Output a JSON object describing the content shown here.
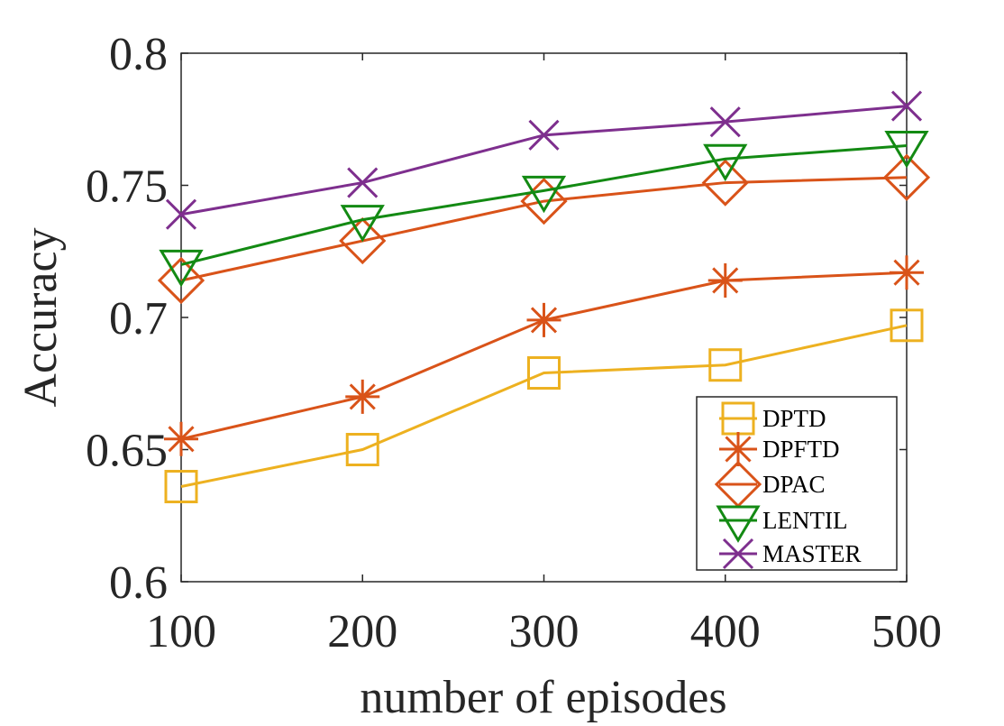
{
  "chart_data": {
    "type": "line",
    "title": "",
    "xlabel": "number of episodes",
    "ylabel": "Accuracy",
    "x": [
      100,
      200,
      300,
      400,
      500
    ],
    "x_ticks": [
      "100",
      "200",
      "300",
      "400",
      "500"
    ],
    "y_ticks": [
      "0.6",
      "0.65",
      "0.7",
      "0.75",
      "0.8"
    ],
    "xlim": [
      100,
      500
    ],
    "ylim": [
      0.6,
      0.8
    ],
    "grid": false,
    "legend_position": "bottom-right",
    "series": [
      {
        "name": "DPTD",
        "marker": "square",
        "color": "#EDB120",
        "values": [
          0.636,
          0.65,
          0.679,
          0.682,
          0.697
        ]
      },
      {
        "name": "DPFTD",
        "marker": "asterisk",
        "color": "#D95319",
        "values": [
          0.654,
          0.67,
          0.699,
          0.714,
          0.717
        ]
      },
      {
        "name": "DPAC",
        "marker": "diamond",
        "color": "#D95319",
        "values": [
          0.714,
          0.729,
          0.744,
          0.751,
          0.753
        ]
      },
      {
        "name": "LENTIL",
        "marker": "triangle-down",
        "color": "#138A13",
        "values": [
          0.72,
          0.737,
          0.748,
          0.76,
          0.765
        ]
      },
      {
        "name": "MASTER",
        "marker": "x",
        "color": "#7E2F8E",
        "values": [
          0.739,
          0.751,
          0.769,
          0.774,
          0.78
        ]
      }
    ]
  }
}
